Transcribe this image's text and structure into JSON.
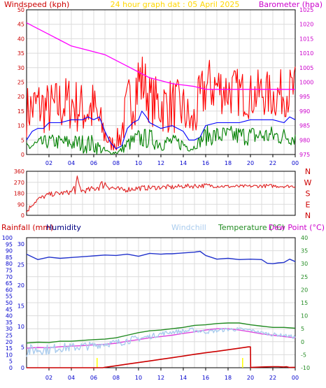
{
  "header": {
    "windspeed_label": "Windspeed (kph)",
    "date_title": "24 hour graph dat : 05 April 2025",
    "barometer_label": "Barometer (hpa)"
  },
  "middle_header": {
    "rainfall_label": "Rainfall (mm)",
    "humidity_label": "Humidity",
    "windchill_label": "Windchill",
    "temperature_label": "Temperature (°C)",
    "dewpoint_label": "Dew Point (°C)"
  },
  "colors": {
    "background": "#ffffff",
    "grid": "#dcdcdc",
    "axis": "#000000",
    "windspeed": "#ff0000",
    "gust": "#ff0000",
    "average_wind": "#0000ff",
    "low_wind": "#008000",
    "barometer": "#ff00ff",
    "direction": "#e02020",
    "rainfall": "#cc0000",
    "humidity": "#2233cc",
    "windchill": "#aaccee",
    "temperature": "#228b22",
    "dewpoint": "#dd44dd",
    "title": "#ffd700",
    "rain_marker": "#ffff00"
  },
  "chart_data": [
    {
      "type": "line",
      "title": "24 hour graph dat : 05 April 2025",
      "xlabel": "",
      "ylabel": "Windspeed (kph)",
      "y2label": "Barometer (hpa)",
      "x_ticks": [
        "02",
        "04",
        "06",
        "08",
        "10",
        "12",
        "14",
        "16",
        "18",
        "20",
        "22",
        "00"
      ],
      "xlim": [
        0,
        24
      ],
      "ylim": [
        0,
        50
      ],
      "y_ticks": [
        0,
        5,
        10,
        15,
        20,
        25,
        30,
        35,
        40,
        45,
        50
      ],
      "y2lim": [
        975,
        1025
      ],
      "y2_ticks": [
        975,
        980,
        985,
        990,
        995,
        1000,
        1005,
        1010,
        1015,
        1020,
        1025
      ],
      "grid": true,
      "series": [
        {
          "name": "Windspeed (kph)",
          "axis": "left",
          "style": "noisy",
          "x": [
            0,
            1,
            2,
            3,
            4,
            5,
            6,
            6.8,
            7.5,
            8.3,
            9,
            10,
            10.5,
            11,
            12,
            13,
            14,
            14.8,
            15.2,
            16,
            17,
            18,
            19,
            20,
            21,
            22,
            23,
            24
          ],
          "lo": [
            6,
            7,
            6,
            7,
            8,
            6,
            5,
            2,
            1,
            1,
            6,
            12,
            15,
            10,
            7,
            7,
            6,
            3,
            5,
            13,
            14,
            13,
            13,
            12,
            13,
            12,
            13,
            13
          ],
          "hi": [
            24,
            27,
            25,
            27,
            28,
            25,
            26,
            15,
            6,
            10,
            26,
            39,
            35,
            28,
            27,
            27,
            25,
            17,
            25,
            34,
            33,
            31,
            30,
            28,
            30,
            28,
            30,
            31
          ]
        },
        {
          "name": "Average wind",
          "axis": "left",
          "style": "line",
          "x": [
            0,
            0.5,
            1,
            1.5,
            2,
            3,
            4,
            5,
            5.5,
            6,
            6.5,
            7,
            7.5,
            8,
            8.5,
            9,
            9.5,
            10,
            10.3,
            10.7,
            11,
            12,
            13,
            14,
            14.5,
            15,
            15.5,
            16,
            17,
            18,
            19,
            20,
            21,
            22,
            23,
            23.5,
            24
          ],
          "y": [
            5,
            8,
            9,
            9,
            11,
            11,
            12,
            12,
            13,
            12,
            13,
            8,
            4,
            2,
            3,
            9,
            11,
            12,
            15,
            13,
            11,
            9,
            10,
            8,
            5,
            5,
            6,
            10,
            11,
            11,
            11,
            12,
            12,
            12,
            11,
            13,
            12
          ]
        },
        {
          "name": "Low wind",
          "axis": "left",
          "style": "noisy",
          "x": [
            0,
            2,
            4,
            6,
            6.8,
            7.5,
            8.3,
            9,
            10,
            11,
            12,
            13,
            14,
            14.8,
            15.2,
            16,
            18,
            20,
            22,
            24
          ],
          "lo": [
            0,
            2,
            1,
            0,
            0,
            0,
            0,
            1,
            2,
            2,
            1,
            2,
            1,
            1,
            2,
            3,
            3,
            3,
            3,
            3
          ],
          "hi": [
            5,
            7,
            7,
            7,
            3,
            1,
            2,
            6,
            9,
            9,
            7,
            7,
            6,
            3,
            5,
            10,
            10,
            10,
            10,
            9
          ]
        },
        {
          "name": "Barometer (hpa)",
          "axis": "right",
          "style": "line",
          "x": [
            0,
            0.5,
            1,
            2,
            3,
            4,
            5,
            6,
            7,
            8,
            9,
            10,
            11,
            12,
            13,
            14,
            15,
            15.5,
            16,
            17,
            18,
            19,
            20,
            21,
            22,
            23,
            24
          ],
          "y": [
            1020.5,
            1019.5,
            1018.5,
            1016.5,
            1014.5,
            1012.5,
            1011.5,
            1010.5,
            1009.5,
            1007.5,
            1005.5,
            1003.5,
            1001.5,
            1000.5,
            999.5,
            999,
            998.5,
            998,
            997.5,
            997.5,
            997.5,
            997.5,
            997.5,
            997.5,
            997.5,
            997.5,
            997.5
          ]
        }
      ]
    },
    {
      "type": "line",
      "title": "",
      "ylabel": "",
      "ylim": [
        0,
        360
      ],
      "y_ticks": [
        0,
        90,
        180,
        270,
        360
      ],
      "y_tick_labels": [
        "0",
        "90",
        "180",
        "270",
        "360"
      ],
      "direction_labels": [
        "N",
        "W",
        "S",
        "E",
        "N"
      ],
      "x_ticks": [],
      "grid": true,
      "series": [
        {
          "name": "Wind direction",
          "axis": "left",
          "style": "noisy",
          "x": [
            0,
            0.5,
            1,
            1.5,
            2,
            3,
            4,
            4.5,
            5,
            5.5,
            6,
            6.5,
            7,
            7.5,
            8,
            8.5,
            9,
            10,
            11,
            12,
            13,
            14,
            15,
            16,
            17,
            18,
            19,
            20,
            21,
            22,
            23,
            24
          ],
          "lo": [
            10,
            70,
            110,
            130,
            150,
            160,
            170,
            170,
            180,
            180,
            190,
            200,
            220,
            200,
            190,
            180,
            190,
            200,
            205,
            210,
            210,
            220,
            220,
            225,
            225,
            222,
            222,
            225,
            225,
            225,
            225,
            225
          ],
          "hi": [
            50,
            110,
            150,
            170,
            190,
            200,
            210,
            330,
            220,
            230,
            245,
            280,
            300,
            260,
            240,
            230,
            235,
            245,
            245,
            250,
            250,
            255,
            260,
            262,
            255,
            250,
            250,
            250,
            255,
            255,
            250,
            250
          ]
        }
      ]
    },
    {
      "type": "line",
      "title": "",
      "ylabel": "Rainfall (mm)",
      "y2label": "Temperature (°C)",
      "x_ticks": [
        "02",
        "04",
        "06",
        "08",
        "10",
        "12",
        "14",
        "16",
        "18",
        "20",
        "22",
        "00"
      ],
      "xlim": [
        0,
        24
      ],
      "ylim_rain": [
        0,
        100
      ],
      "rain_ticks": [
        0,
        5,
        10,
        15,
        20,
        25,
        30,
        35,
        40,
        45,
        50,
        55,
        60,
        65,
        70,
        75,
        80,
        85,
        90,
        95,
        100
      ],
      "humidity_ticks": [
        0,
        5,
        10,
        15,
        20,
        25,
        30
      ],
      "humidity_lim": [
        0,
        31.5
      ],
      "y2lim": [
        -10,
        40
      ],
      "y2_ticks": [
        -10,
        -5,
        0,
        5,
        10,
        15,
        20,
        25,
        30,
        35,
        40
      ],
      "grid": true,
      "series": [
        {
          "name": "Humidity",
          "axis": "humidity",
          "style": "line",
          "x": [
            0,
            1,
            2,
            3,
            4,
            5,
            6,
            7,
            8,
            9,
            10,
            11,
            12,
            12.5,
            13,
            14,
            15,
            15.5,
            16,
            17,
            18,
            19,
            20,
            21,
            21.5,
            22,
            22.5,
            23,
            23.5,
            24
          ],
          "y": [
            27.5,
            26.2,
            26.8,
            26.5,
            26.7,
            26.9,
            27.1,
            27.3,
            27.2,
            27.5,
            27.0,
            27.7,
            27.5,
            27.6,
            27.6,
            27.8,
            28.0,
            28.2,
            27.2,
            26.3,
            26.5,
            26.2,
            26.3,
            26.2,
            25.3,
            25.2,
            25.4,
            25.5,
            26.3,
            25.7
          ]
        },
        {
          "name": "Temperature (°C)",
          "axis": "right",
          "style": "line",
          "x": [
            0,
            1,
            2,
            3,
            4,
            5,
            6,
            7,
            8,
            9,
            10,
            11,
            12,
            13,
            14,
            15,
            16,
            17,
            18,
            19,
            20,
            21,
            22,
            23,
            24
          ],
          "y": [
            -0.5,
            -0.2,
            -0.3,
            0.2,
            0.2,
            0.5,
            0.8,
            1.0,
            1.5,
            2.5,
            3.5,
            4.2,
            4.5,
            5.0,
            5.5,
            6.3,
            6.5,
            7.0,
            7.2,
            7.2,
            6.5,
            6.0,
            5.5,
            5.5,
            5.2
          ]
        },
        {
          "name": "Dew Point (°C)",
          "axis": "right",
          "style": "line",
          "x": [
            0,
            1,
            2,
            3,
            4,
            5,
            6,
            7,
            8,
            9,
            10,
            11,
            12,
            13,
            14,
            15,
            16,
            17,
            18,
            19,
            20,
            21,
            22,
            23,
            24
          ],
          "y": [
            -2.5,
            -2.2,
            -2.3,
            -1.9,
            -1.7,
            -1.5,
            -1.2,
            -1.0,
            -0.6,
            0.2,
            0.8,
            1.5,
            2.0,
            2.5,
            3.2,
            3.8,
            4.5,
            5.0,
            5.0,
            4.5,
            3.8,
            3.0,
            2.5,
            2.0,
            1.5
          ]
        },
        {
          "name": "Windchill",
          "axis": "right",
          "style": "noisy",
          "x": [
            0,
            1,
            2,
            3,
            4,
            5,
            6,
            7,
            8,
            9,
            10,
            11,
            12,
            13,
            14,
            15,
            16,
            17,
            18,
            19,
            20,
            21,
            22,
            23,
            24
          ],
          "lo": [
            -6,
            -5,
            -5,
            -4,
            -4,
            -3.5,
            -3,
            -2,
            -2,
            -1,
            0,
            1,
            2,
            3,
            3,
            3.5,
            3,
            3.5,
            4,
            4,
            4,
            3,
            2,
            2,
            1
          ],
          "hi": [
            -1,
            -1,
            -1,
            -0.5,
            -0.5,
            0,
            0,
            0.5,
            1,
            2,
            2.5,
            3,
            4,
            4.5,
            5,
            5.5,
            4.5,
            5,
            5.5,
            5.5,
            5,
            4,
            3.5,
            3,
            2.5
          ]
        },
        {
          "name": "Rainfall (mm)",
          "axis": "rain",
          "style": "line",
          "x": [
            0,
            5,
            6,
            6.8,
            7,
            8,
            9,
            10,
            11,
            12,
            13,
            14,
            15,
            16,
            17,
            17.5,
            18,
            19,
            19.8,
            20,
            20.02,
            21,
            22,
            22.5,
            23,
            23.2,
            23.5,
            24
          ],
          "y": [
            0,
            0,
            0,
            0,
            0.3,
            1.5,
            2.8,
            4.0,
            5.2,
            6.5,
            7.7,
            9.0,
            10.3,
            11.5,
            12.6,
            13.2,
            13.8,
            15.0,
            16.0,
            16.0,
            0.2,
            0.6,
            0.8,
            0.8,
            0.6,
            0.8,
            0.2,
            0.3
          ]
        }
      ],
      "rain_markers_x": [
        6.3,
        19.3
      ]
    }
  ]
}
